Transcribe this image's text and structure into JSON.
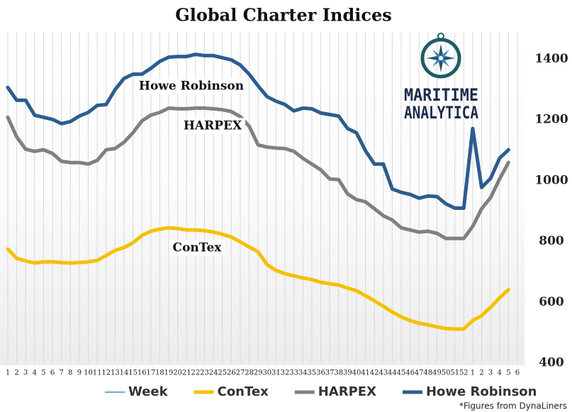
{
  "chart_data": {
    "type": "line",
    "title": "Global Charter Indices",
    "categories": [
      1,
      2,
      3,
      4,
      5,
      6,
      7,
      8,
      9,
      10,
      11,
      12,
      13,
      14,
      15,
      16,
      17,
      18,
      19,
      20,
      21,
      22,
      23,
      24,
      25,
      26,
      27,
      28,
      29,
      30,
      31,
      32,
      33,
      34,
      35,
      36,
      37,
      38,
      39,
      40,
      41,
      42,
      43,
      44,
      45,
      46,
      47,
      48,
      49,
      50,
      51,
      52,
      1,
      2,
      3,
      4,
      5,
      6
    ],
    "x_label": "Week",
    "x_label_color": "#4a8ac4",
    "series": [
      {
        "name": "ConTex",
        "color": "#f5c000",
        "values": [
          775,
          745,
          736,
          729,
          733,
          733,
          731,
          729,
          731,
          733,
          738,
          754,
          771,
          780,
          796,
          820,
          834,
          841,
          845,
          843,
          838,
          838,
          836,
          831,
          824,
          815,
          799,
          782,
          766,
          724,
          705,
          694,
          687,
          680,
          675,
          666,
          661,
          657,
          647,
          638,
          622,
          605,
          587,
          568,
          552,
          540,
          531,
          526,
          519,
          514,
          512,
          512,
          540,
          556,
          584,
          614,
          642,
          null
        ]
      },
      {
        "name": "HARPEX",
        "color": "#808080",
        "values": [
          1209,
          1144,
          1104,
          1097,
          1102,
          1090,
          1064,
          1060,
          1060,
          1055,
          1067,
          1102,
          1106,
          1127,
          1158,
          1197,
          1216,
          1225,
          1239,
          1237,
          1237,
          1239,
          1239,
          1237,
          1234,
          1228,
          1211,
          1179,
          1118,
          1111,
          1108,
          1106,
          1097,
          1074,
          1055,
          1036,
          1006,
          1004,
          957,
          938,
          931,
          908,
          885,
          871,
          845,
          838,
          831,
          834,
          827,
          810,
          810,
          810,
          850,
          908,
          945,
          1006,
          1060,
          null
        ]
      },
      {
        "name": "Howe Robinson",
        "color": "#2c5d8f",
        "values": [
          1307,
          1265,
          1265,
          1216,
          1209,
          1202,
          1188,
          1195,
          1213,
          1225,
          1248,
          1251,
          1300,
          1337,
          1351,
          1351,
          1370,
          1393,
          1407,
          1409,
          1409,
          1416,
          1412,
          1412,
          1405,
          1398,
          1381,
          1351,
          1312,
          1277,
          1262,
          1251,
          1230,
          1239,
          1237,
          1223,
          1218,
          1213,
          1172,
          1158,
          1099,
          1055,
          1055,
          973,
          962,
          955,
          943,
          950,
          948,
          924,
          910,
          910,
          1172,
          978,
          1008,
          1074,
          1102,
          null
        ]
      }
    ],
    "ylim": [
      400,
      1490
    ],
    "yticks": [
      400,
      600,
      800,
      1000,
      1200,
      1400
    ],
    "grid": true,
    "annotations": [
      "Howe Robinson",
      "HARPEX",
      "ConTex"
    ],
    "logo": [
      "MARITIME",
      "ANALYTICA"
    ],
    "footnote": "*Figures from DynaLiners"
  }
}
